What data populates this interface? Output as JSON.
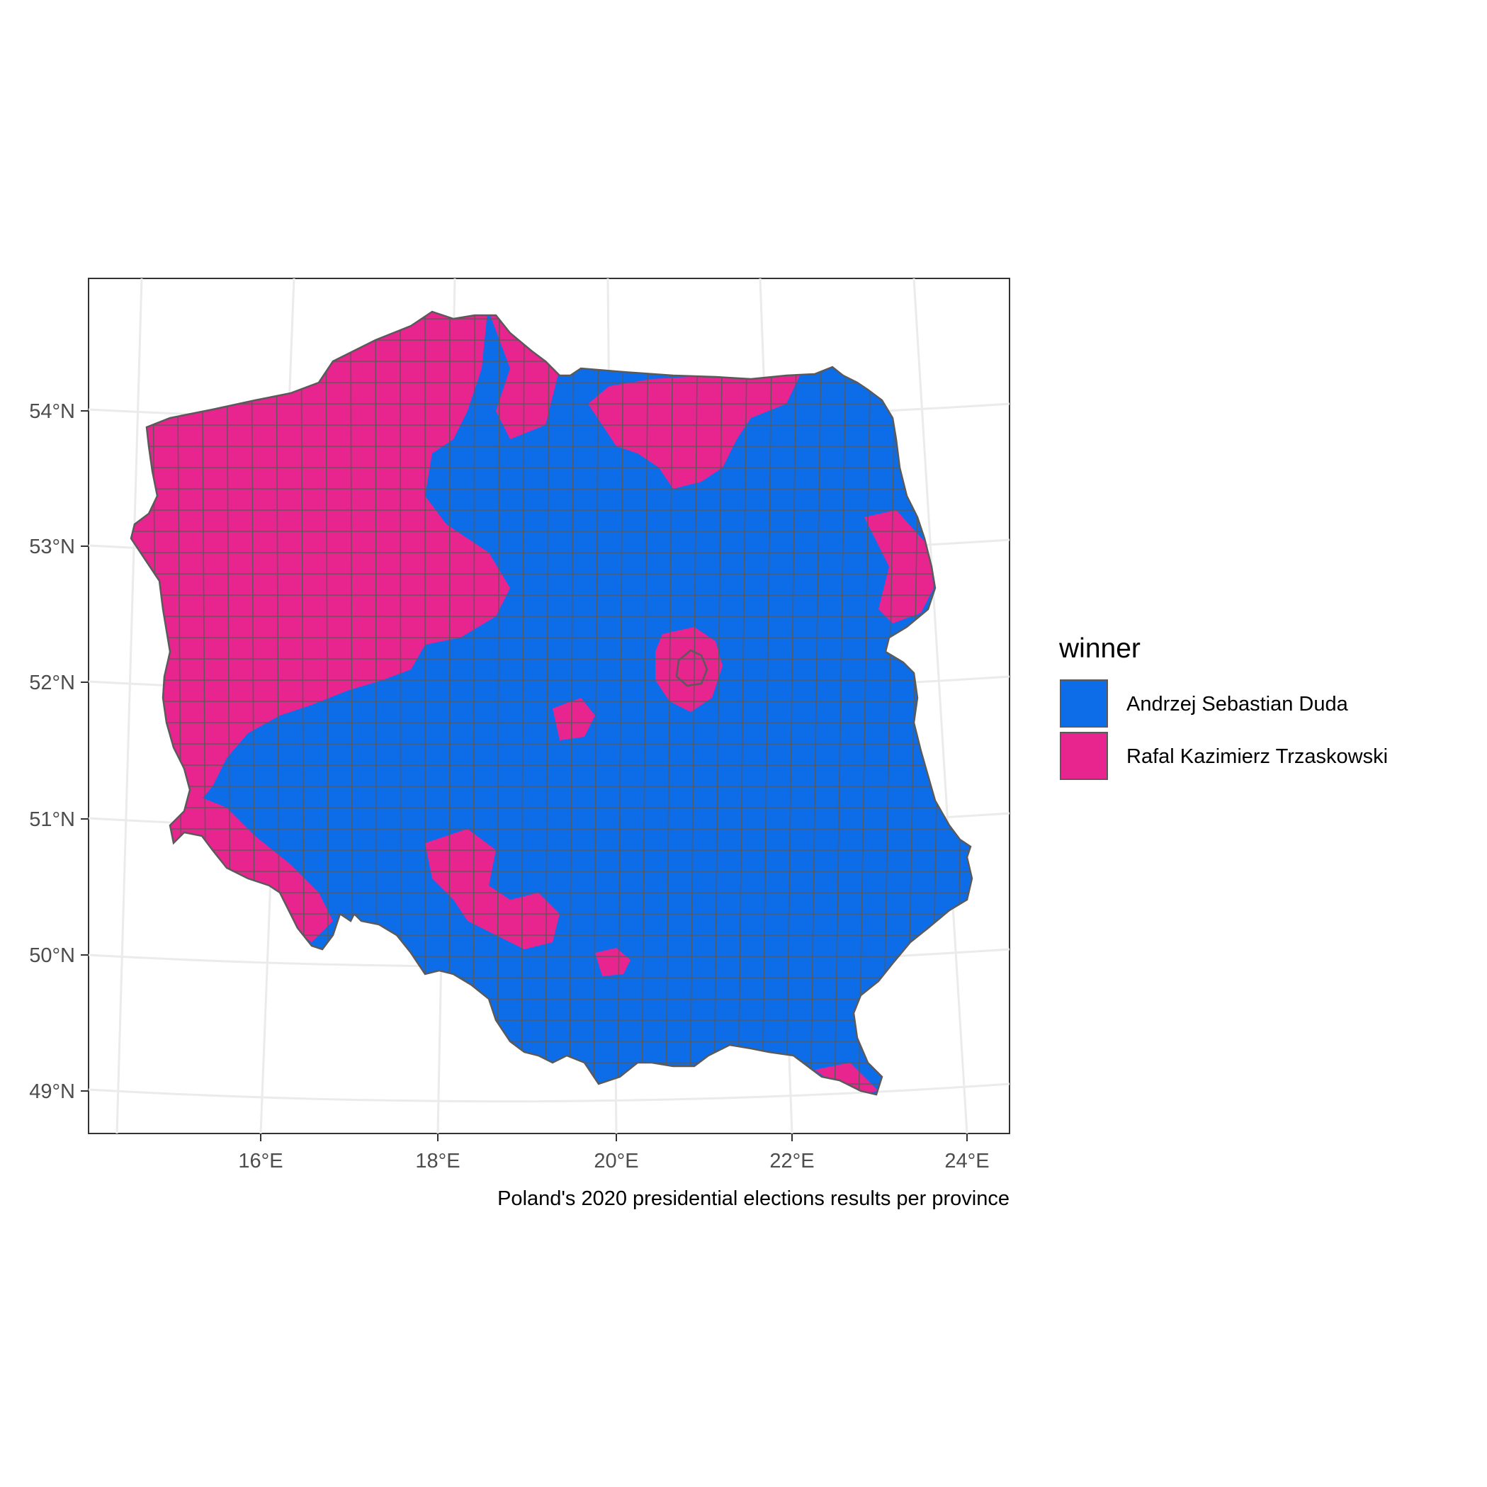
{
  "chart_data": {
    "type": "choropleth",
    "caption": "Poland's 2020 presidential elections results per province",
    "x_ticks": [
      "16°E",
      "18°E",
      "20°E",
      "22°E",
      "24°E"
    ],
    "y_ticks": [
      "49°N",
      "50°N",
      "51°N",
      "52°N",
      "53°N",
      "54°N"
    ],
    "xlim": [
      14,
      24.4
    ],
    "ylim": [
      48.7,
      55.0
    ],
    "legend": {
      "title": "winner",
      "placement": "right",
      "entries": [
        {
          "label": "Andrzej Sebastian Duda",
          "color": "#0d6de8"
        },
        {
          "label": "Rafal Kazimierz Trzaskowski",
          "color": "#e8258e"
        }
      ]
    },
    "border_color": "#5a5a5a",
    "grid": true
  }
}
